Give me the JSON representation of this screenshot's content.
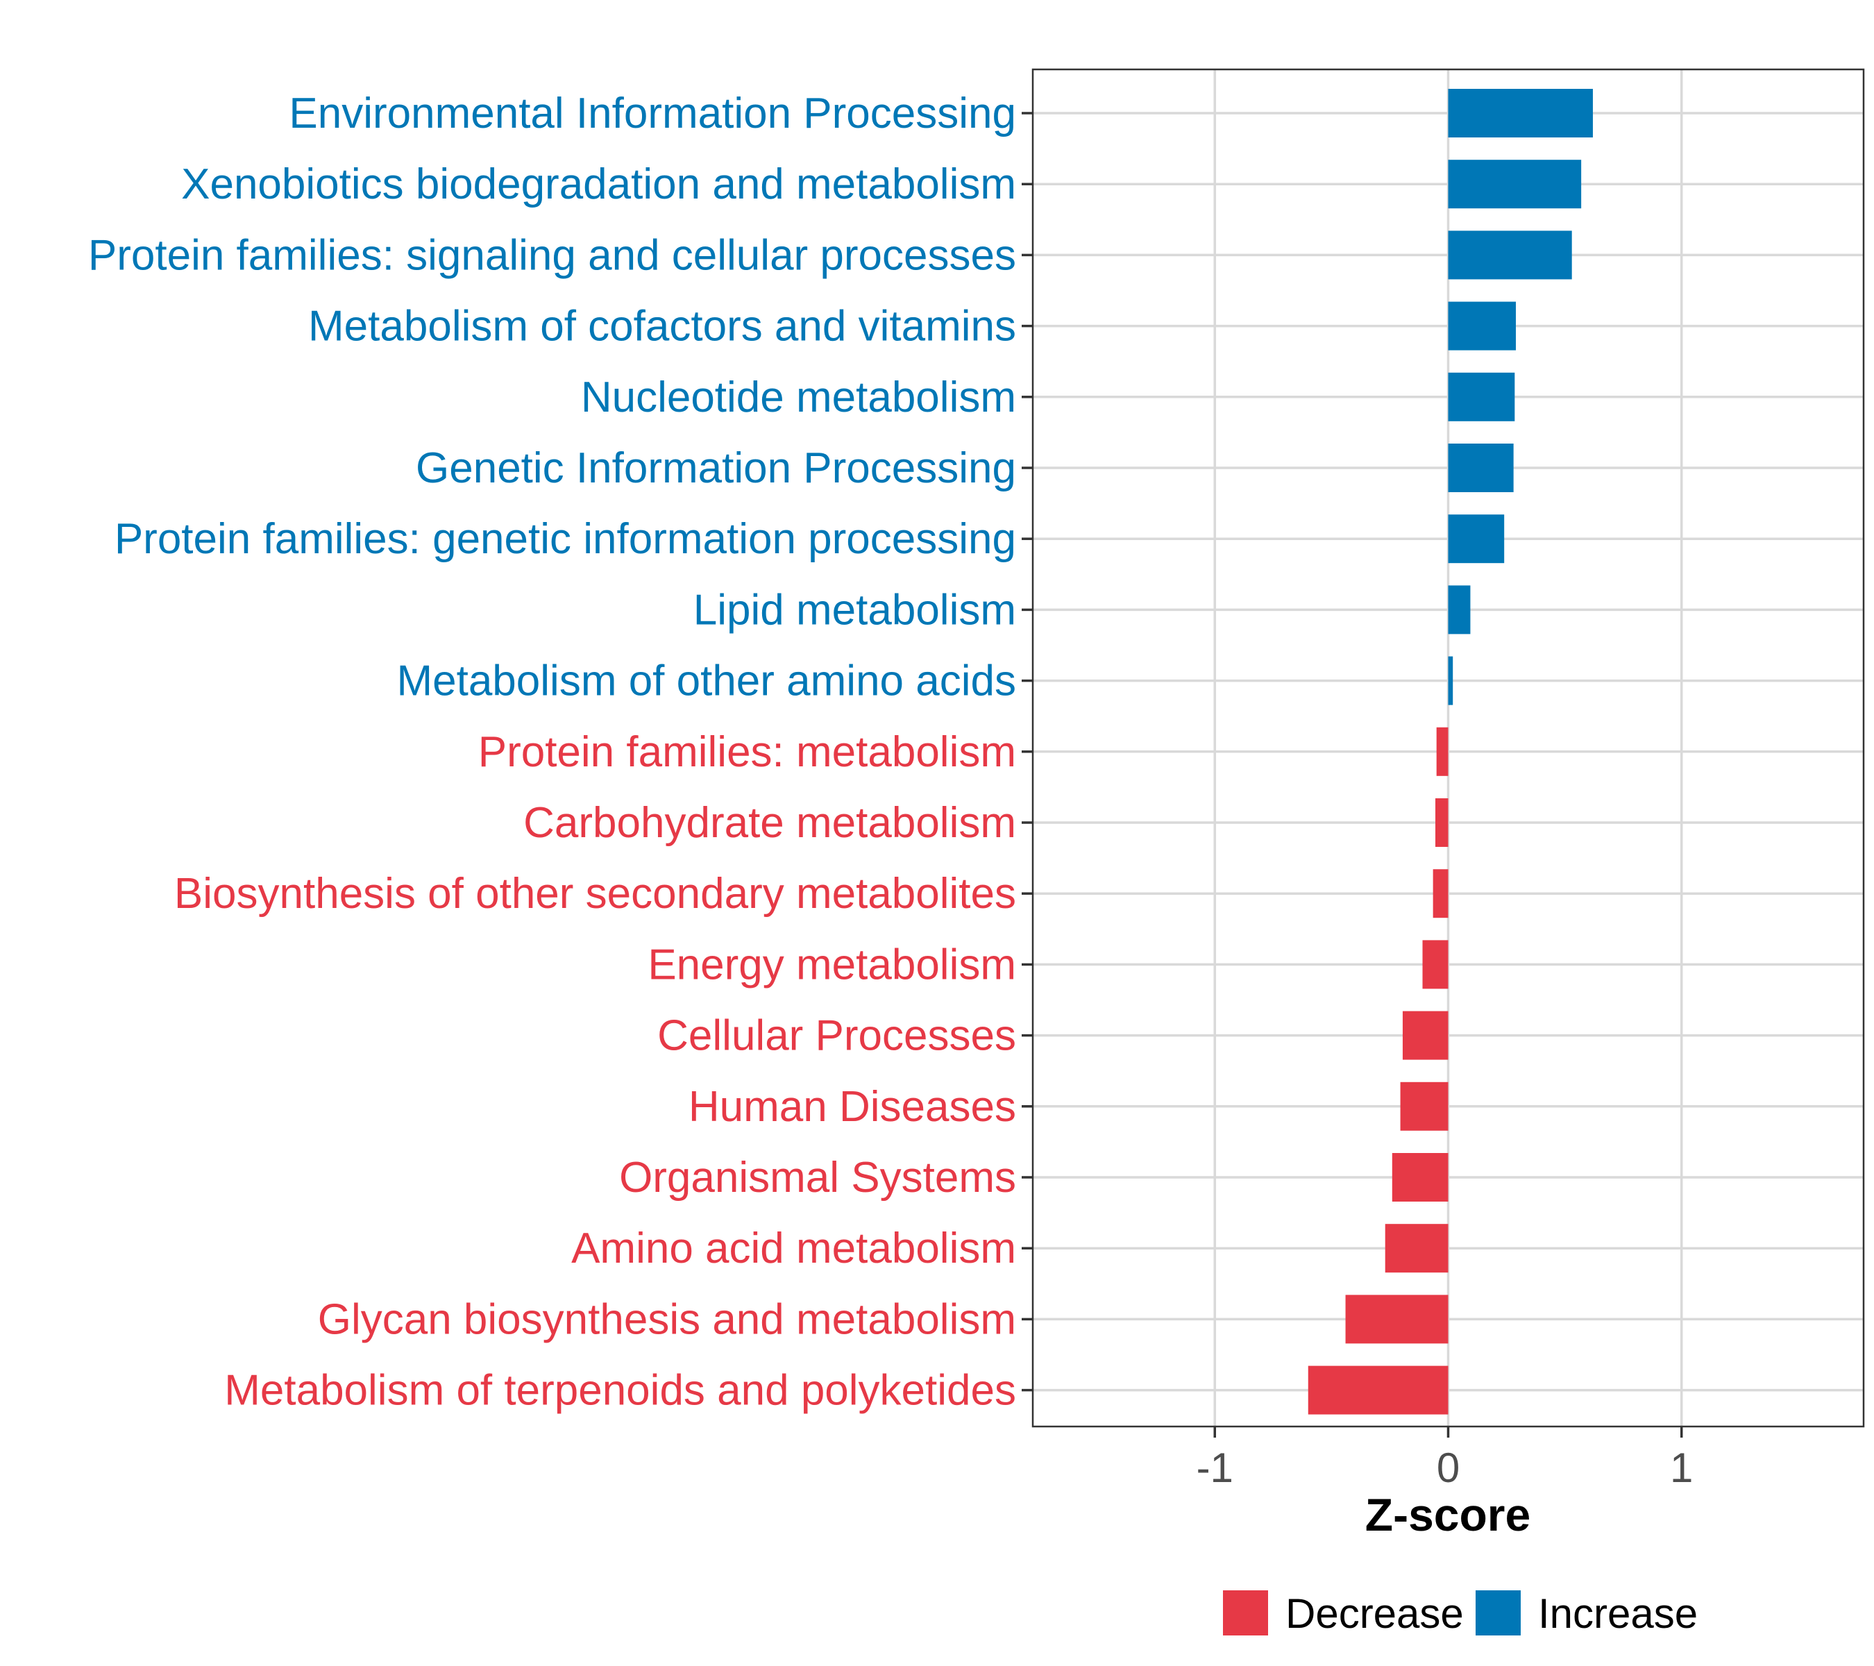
{
  "chart_data": {
    "type": "bar",
    "orientation": "horizontal",
    "xlabel": "Z-score",
    "ylabel": "",
    "xlim": [
      -1.78,
      1.78
    ],
    "xticks": [
      -1,
      0,
      1
    ],
    "xtick_labels": [
      "-1",
      "0",
      "1"
    ],
    "grid": true,
    "legend": {
      "placement": "bottom",
      "entries": [
        {
          "label": "Decrease",
          "color": "#e63946"
        },
        {
          "label": "Increase",
          "color": "#0077b6"
        }
      ]
    },
    "colors": {
      "Decrease": "#e63946",
      "Increase": "#0077b6"
    },
    "categories": [
      "Environmental Information Processing",
      "Xenobiotics biodegradation and metabolism",
      "Protein families: signaling and cellular processes",
      "Metabolism of cofactors and vitamins",
      "Nucleotide metabolism",
      "Genetic Information Processing",
      "Protein families: genetic information processing",
      "Lipid metabolism",
      "Metabolism of other amino acids",
      "Protein families: metabolism",
      "Carbohydrate metabolism",
      "Biosynthesis of other secondary metabolites",
      "Energy metabolism",
      "Cellular Processes",
      "Human Diseases",
      "Organismal Systems",
      "Amino acid metabolism",
      "Glycan biosynthesis and metabolism",
      "Metabolism of terpenoids and polyketides"
    ],
    "values": [
      0.62,
      0.57,
      0.53,
      0.29,
      0.285,
      0.28,
      0.24,
      0.095,
      0.02,
      -0.05,
      -0.055,
      -0.065,
      -0.11,
      -0.195,
      -0.205,
      -0.24,
      -0.27,
      -0.44,
      -0.6
    ],
    "groups": [
      "Increase",
      "Increase",
      "Increase",
      "Increase",
      "Increase",
      "Increase",
      "Increase",
      "Increase",
      "Increase",
      "Decrease",
      "Decrease",
      "Decrease",
      "Decrease",
      "Decrease",
      "Decrease",
      "Decrease",
      "Decrease",
      "Decrease",
      "Decrease"
    ]
  }
}
